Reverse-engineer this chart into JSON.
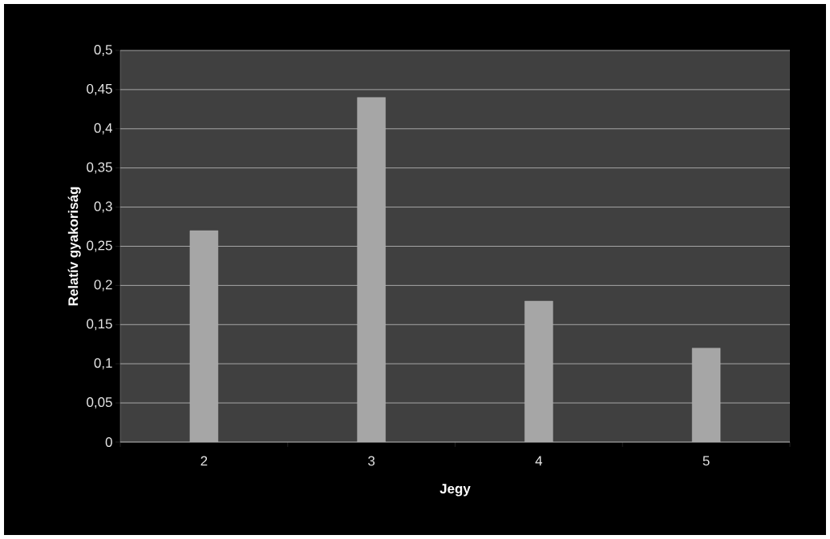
{
  "chart_data": {
    "type": "bar",
    "xlabel": "Jegy",
    "ylabel": "Relatív gyakoriság",
    "categories": [
      "2",
      "3",
      "4",
      "5"
    ],
    "values": [
      0.27,
      0.44,
      0.18,
      0.12
    ],
    "color": "#a6a6a6",
    "ylim": [
      0,
      0.5
    ],
    "yticks": [
      0,
      {
        "value": 0.05,
        "label": "0,05"
      },
      {
        "value": 0.1,
        "label": "0,1"
      },
      {
        "value": 0.15,
        "label": "0,15"
      },
      {
        "value": 0.2,
        "label": "0,2"
      },
      {
        "value": 0.25,
        "label": "0,25"
      },
      {
        "value": 0.3,
        "label": "0,3"
      },
      {
        "value": 0.35,
        "label": "0,35"
      },
      {
        "value": 0.4,
        "label": "0,4"
      },
      {
        "value": 0.45,
        "label": "0,45"
      },
      {
        "value": 0.5,
        "label": "0,5"
      }
    ],
    "grid": "y"
  }
}
